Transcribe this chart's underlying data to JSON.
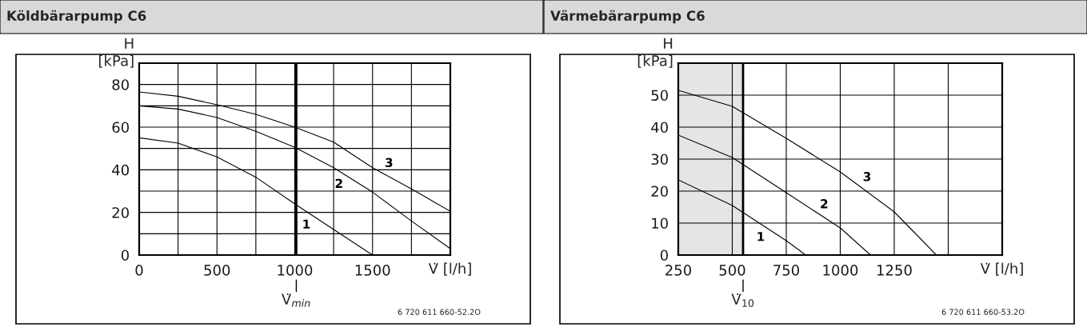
{
  "chart_data": [
    {
      "type": "line",
      "title": "Köldbärarpump C6",
      "xlabel": "V̇ [l/h]",
      "ylabel": "H\n[kPa]",
      "xlim": [
        0,
        2000
      ],
      "ylim": [
        0,
        90
      ],
      "xticks": [
        0,
        {
          "value": 250,
          "label": null
        },
        500,
        {
          "value": 750,
          "label": null
        },
        1000,
        {
          "value": 1250,
          "label": null
        },
        1500,
        {
          "value": 1750,
          "label": null
        },
        {
          "value": 2000,
          "label": null
        }
      ],
      "yticks": [
        0,
        {
          "value": 10,
          "label": null
        },
        20,
        {
          "value": 30,
          "label": null
        },
        40,
        {
          "value": 50,
          "label": null
        },
        60,
        {
          "value": 70,
          "label": null
        },
        80
      ],
      "grid": true,
      "legend": false,
      "marker": "none",
      "line_style": "solid",
      "series": [
        {
          "name": "1",
          "color": "#000000",
          "x": [
            0,
            250,
            500,
            750,
            1000,
            1250,
            1500
          ],
          "values": [
            55,
            52.5,
            46,
            36.5,
            24,
            12,
            0
          ]
        },
        {
          "name": "2",
          "color": "#000000",
          "x": [
            0,
            250,
            500,
            750,
            1000,
            1250,
            1500,
            1750,
            2000
          ],
          "values": [
            70,
            68.5,
            64.5,
            58,
            50.5,
            41,
            29.5,
            16,
            3
          ]
        },
        {
          "name": "3",
          "color": "#000000",
          "x": [
            0,
            250,
            500,
            750,
            1000,
            1250,
            1500,
            1750,
            2000
          ],
          "values": [
            76.5,
            74.5,
            70.5,
            66,
            60,
            53,
            41,
            31,
            20.5
          ]
        }
      ],
      "ref_lines": [
        {
          "axis": "x",
          "value": 1010,
          "label": "V̇$_{min}$",
          "color": "#000000"
        }
      ],
      "annotations": [
        "6 720 611 660-52.2O"
      ]
    },
    {
      "type": "line",
      "title": "Värmebärarpump C6",
      "xlabel": "V̇ [l/h]",
      "ylabel": "H\n[kPa]",
      "xlim": [
        250,
        1750
      ],
      "ylim": [
        0,
        60
      ],
      "xticks": [
        250,
        500,
        750,
        1000,
        1250,
        {
          "value": 1500,
          "label": null
        },
        {
          "value": 1750,
          "label": null
        }
      ],
      "yticks": [
        0,
        10,
        20,
        30,
        40,
        50
      ],
      "grid": true,
      "legend": false,
      "marker": "none",
      "line_style": "solid",
      "series": [
        {
          "name": "1",
          "color": "#000000",
          "x": [
            250,
            500,
            750,
            840
          ],
          "values": [
            23.5,
            15.5,
            4.5,
            0
          ]
        },
        {
          "name": "2",
          "color": "#000000",
          "x": [
            250,
            500,
            750,
            1000,
            1140
          ],
          "values": [
            37.5,
            30.5,
            19.5,
            8.5,
            0
          ]
        },
        {
          "name": "3",
          "color": "#000000",
          "x": [
            250,
            500,
            750,
            1000,
            1250,
            1445
          ],
          "values": [
            51.5,
            46.5,
            36.5,
            26,
            13.5,
            0
          ]
        }
      ],
      "bands": [
        {
          "axis": "x",
          "from": 250,
          "to": 550,
          "color": "#e5e5e5"
        }
      ],
      "ref_lines": [
        {
          "axis": "x",
          "value": 550,
          "label": "V̇$_{10}$",
          "color": "#000000"
        }
      ],
      "annotations": [
        "6 720 611 660-53.2O"
      ]
    }
  ]
}
